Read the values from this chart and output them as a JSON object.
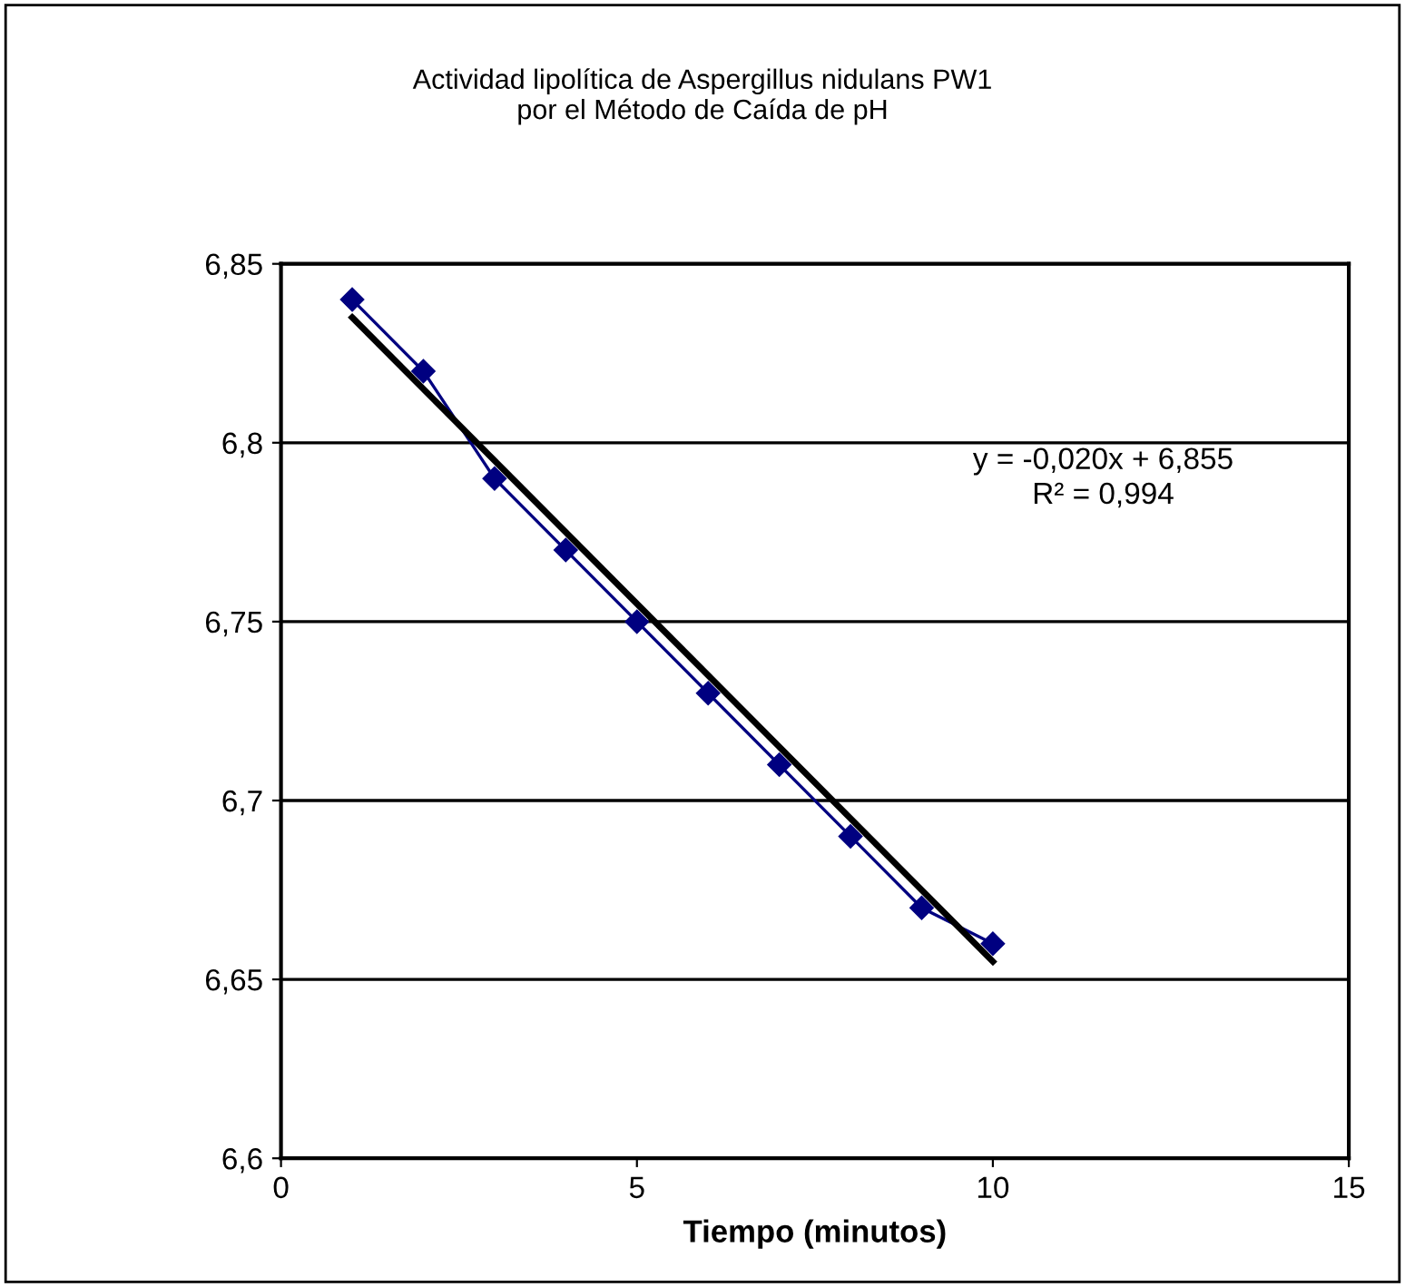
{
  "chart_data": {
    "type": "line",
    "title": "Actividad lipolítica de Aspergillus nidulans PW1\npor el Método de Caída de pH",
    "xlabel": "Tiempo (minutos)",
    "series": [
      {
        "color": "#000080",
        "marker": "diamond",
        "x": [
          1,
          2,
          3,
          4,
          5,
          6,
          7,
          8,
          9,
          10
        ],
        "values": [
          6.84,
          6.82,
          6.79,
          6.77,
          6.75,
          6.73,
          6.71,
          6.69,
          6.67,
          6.66
        ]
      },
      {
        "color": "#000000",
        "x": [
          1,
          10
        ],
        "values": [
          6.835,
          6.655
        ]
      }
    ],
    "annotations": [
      "y = -0,020x + 6,855\nR² = 0,994"
    ],
    "xlim": [
      0,
      15
    ],
    "xticks": [
      0,
      5,
      10,
      15
    ],
    "ylim": [
      6.6,
      6.85
    ],
    "yticks": [
      {
        "value": 6.6,
        "label": "6,6"
      },
      {
        "value": 6.65,
        "label": "6,65"
      },
      {
        "value": 6.7,
        "label": "6,7"
      },
      {
        "value": 6.75,
        "label": "6,75"
      },
      {
        "value": 6.8,
        "label": "6,8"
      },
      {
        "value": 6.85,
        "label": "6,85"
      }
    ],
    "grid": "y"
  }
}
